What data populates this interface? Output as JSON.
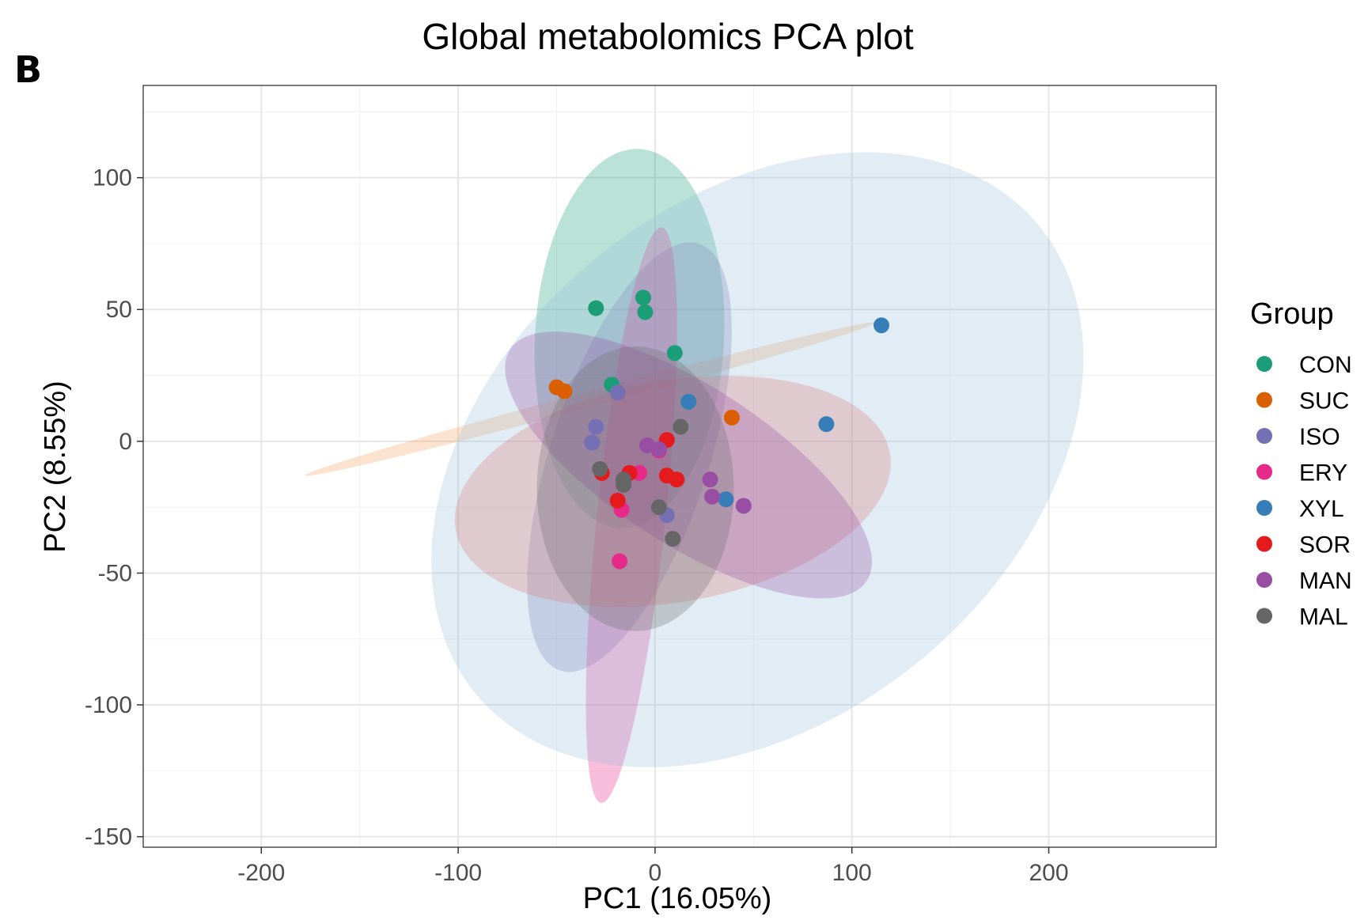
{
  "panel_label": "B",
  "chart_data": {
    "type": "scatter",
    "title": "Global metabolomics PCA plot",
    "xlabel": "PC1 (16.05%)",
    "ylabel": "PC2 (8.55%)",
    "xlim": [
      -260,
      285
    ],
    "ylim": [
      -154,
      135
    ],
    "xticks": [
      -200,
      -100,
      0,
      100,
      200
    ],
    "xtick_labels": [
      "-200",
      "-100",
      "0",
      "100",
      "200"
    ],
    "yticks": [
      -150,
      -100,
      -50,
      0,
      50,
      100
    ],
    "ytick_labels": [
      "-150",
      "-100",
      "-50",
      "0",
      "50",
      "100"
    ],
    "grid": true,
    "legend": {
      "title": "Group",
      "position": "right"
    },
    "series": [
      {
        "name": "CON",
        "color": "#1b9e77",
        "points": [
          [
            -30,
            50.5
          ],
          [
            -6,
            54.5
          ],
          [
            -5,
            49
          ],
          [
            10,
            33.5
          ],
          [
            -22,
            21.5
          ]
        ],
        "ellipse": {
          "cx": -13,
          "cy": 39,
          "rx": 48,
          "ry": 72,
          "angle_deg": 3,
          "fill": "#1b9e77"
        }
      },
      {
        "name": "SUC",
        "color": "#d95f02",
        "points": [
          [
            -50,
            20.5
          ],
          [
            -46,
            19
          ],
          [
            39,
            9
          ]
        ],
        "ellipse": {
          "cx": -33,
          "cy": 16,
          "rx": 150,
          "ry": 3,
          "angle_deg": -15,
          "fill": "#f4a261"
        }
      },
      {
        "name": "ISO",
        "color": "#7570b3",
        "points": [
          [
            -30,
            5.5
          ],
          [
            -32,
            -0.5
          ],
          [
            -19,
            18.5
          ],
          [
            6,
            -28
          ]
        ],
        "ellipse": {
          "cx": -13,
          "cy": -6,
          "rx": 114,
          "ry": 30,
          "angle_deg": -72,
          "fill": "#7570b3"
        }
      },
      {
        "name": "ERY",
        "color": "#e7298a",
        "points": [
          [
            -17,
            -26
          ],
          [
            -8,
            -12
          ],
          [
            -18,
            -45.5
          ],
          [
            2,
            -3.5
          ]
        ],
        "ellipse": {
          "cx": -12,
          "cy": -28,
          "rx": 147,
          "ry": 13,
          "angle_deg": -84,
          "fill": "#e7298a"
        }
      },
      {
        "name": "XYL",
        "color": "#377eb8",
        "points": [
          [
            115,
            44
          ],
          [
            87,
            6.5
          ],
          [
            17,
            15
          ],
          [
            36,
            -22
          ]
        ],
        "ellipse": {
          "cx": 52,
          "cy": -7,
          "rx": 186,
          "ry": 98,
          "angle_deg": -40,
          "fill": "#9ac0dd"
        }
      },
      {
        "name": "SOR",
        "color": "#e41a1c",
        "points": [
          [
            6,
            0.5
          ],
          [
            -27,
            -12
          ],
          [
            -19,
            -22.5
          ],
          [
            6,
            -13
          ],
          [
            11,
            -14.5
          ],
          [
            -13,
            -12
          ]
        ],
        "ellipse": {
          "cx": 9,
          "cy": -19,
          "rx": 112,
          "ry": 42,
          "angle_deg": -10,
          "fill": "#d9797a"
        }
      },
      {
        "name": "MAN",
        "color": "#984ea3",
        "points": [
          [
            -4,
            -1.5
          ],
          [
            2,
            -3
          ],
          [
            28,
            -14.5
          ],
          [
            29,
            -21
          ],
          [
            45,
            -24.5
          ]
        ],
        "ellipse": {
          "cx": 17,
          "cy": -9,
          "rx": 108,
          "ry": 30,
          "angle_deg": 33,
          "fill": "#984ea3"
        }
      },
      {
        "name": "MAL",
        "color": "#666666",
        "points": [
          [
            13,
            5.5
          ],
          [
            -28,
            -10.5
          ],
          [
            -16,
            -14.5
          ],
          [
            -16,
            -16.5
          ],
          [
            2,
            -25
          ],
          [
            9,
            -37
          ]
        ],
        "ellipse": {
          "cx": -10,
          "cy": -18,
          "rx": 50,
          "ry": 54,
          "angle_deg": 0,
          "fill": "#6d6d6d"
        }
      }
    ]
  }
}
